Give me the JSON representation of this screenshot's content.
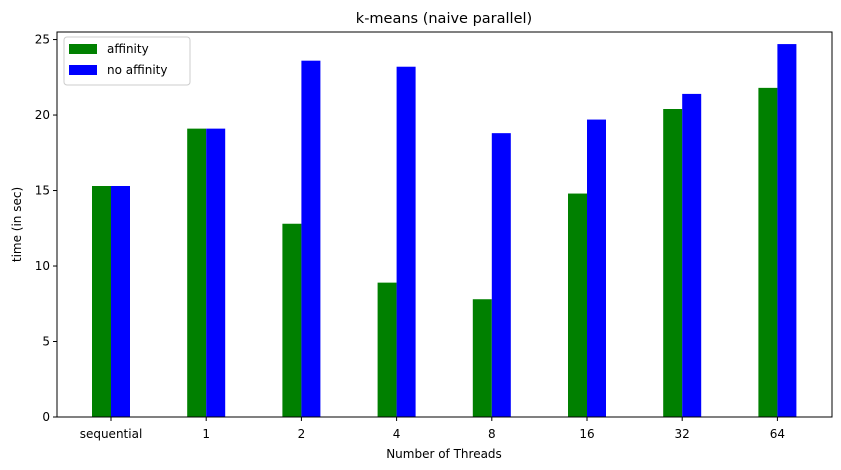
{
  "chart_data": {
    "type": "bar",
    "title": "k-means (naive parallel)",
    "xlabel": "Number of Threads",
    "ylabel": "time (in sec)",
    "categories": [
      "sequential",
      "1",
      "2",
      "4",
      "8",
      "16",
      "32",
      "64"
    ],
    "series": [
      {
        "name": "affinity",
        "color": "#008000",
        "values": [
          15.3,
          19.1,
          12.8,
          8.9,
          7.8,
          14.8,
          20.4,
          21.8
        ]
      },
      {
        "name": "no affinity",
        "color": "#0000ff",
        "values": [
          15.3,
          19.1,
          23.6,
          23.2,
          18.8,
          19.7,
          21.4,
          24.7
        ]
      }
    ],
    "ylim": [
      0,
      25.5
    ],
    "yticks": [
      0,
      5,
      10,
      15,
      20,
      25
    ],
    "grid": false,
    "legend_position": "top-left"
  }
}
